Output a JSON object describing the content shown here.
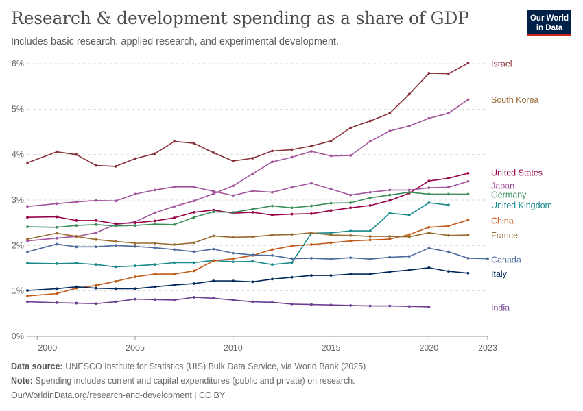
{
  "header": {
    "title": "Research & development spending as a share of GDP",
    "subtitle": "Includes basic research, applied research, and experimental development."
  },
  "logo": {
    "line1": "Our World",
    "line2": "in Data"
  },
  "footer": {
    "source_label": "Data source:",
    "source_text": " UNESCO Institute for Statistics (UIS) Bulk Data Service, via World Bank (2025)",
    "note_label": "Note:",
    "note_text": " Spending includes current and capital expenditures (public and private) on research.",
    "credit": "OurWorldinData.org/research-and-development | CC BY"
  },
  "chart_data": {
    "type": "line",
    "title": "Research & development spending as a share of GDP",
    "xlim": [
      1999.5,
      2023
    ],
    "ylim": [
      0,
      6
    ],
    "x_ticks": [
      2000,
      2005,
      2010,
      2015,
      2020,
      2023
    ],
    "y_ticks": [
      {
        "value": 0,
        "label": "0%"
      },
      {
        "value": 1,
        "label": "1%"
      },
      {
        "value": 2,
        "label": "2%"
      },
      {
        "value": 3,
        "label": "3%"
      },
      {
        "value": 4,
        "label": "4%"
      },
      {
        "value": 5,
        "label": "5%"
      },
      {
        "value": 6,
        "label": "6%"
      }
    ],
    "grid": "horizontal-dashed",
    "series": [
      {
        "name": "Israel",
        "color": "#883039",
        "label_y": 6.0,
        "x": [
          1999.5,
          2001,
          2002,
          2003,
          2004,
          2005,
          2006,
          2007,
          2008,
          2009,
          2010,
          2011,
          2012,
          2013,
          2014,
          2015,
          2016,
          2017,
          2018,
          2019,
          2020,
          2021,
          2022
        ],
        "y": [
          3.82,
          4.06,
          4.0,
          3.76,
          3.74,
          3.91,
          4.02,
          4.29,
          4.25,
          4.04,
          3.86,
          3.92,
          4.08,
          4.11,
          4.19,
          4.3,
          4.59,
          4.74,
          4.91,
          5.33,
          5.79,
          5.78,
          6.01
        ]
      },
      {
        "name": "South Korea",
        "color": "#a2559c",
        "label_y": 5.21,
        "label_color": "#996633",
        "x": [
          1999.5,
          2001,
          2002,
          2003,
          2004,
          2005,
          2006,
          2007,
          2008,
          2009,
          2010,
          2011,
          2012,
          2013,
          2014,
          2015,
          2016,
          2017,
          2018,
          2019,
          2020,
          2021,
          2022
        ],
        "y": [
          2.1,
          2.16,
          2.2,
          2.28,
          2.46,
          2.52,
          2.72,
          2.86,
          2.98,
          3.14,
          3.31,
          3.58,
          3.84,
          3.94,
          4.07,
          3.97,
          3.98,
          4.29,
          4.52,
          4.63,
          4.8,
          4.91,
          5.21
        ]
      },
      {
        "name": "United States",
        "color": "#970046",
        "label_y": 3.6,
        "x": [
          1999.5,
          2001,
          2002,
          2003,
          2004,
          2005,
          2006,
          2007,
          2008,
          2009,
          2010,
          2011,
          2012,
          2013,
          2014,
          2015,
          2016,
          2017,
          2018,
          2019,
          2020,
          2021,
          2022
        ],
        "y": [
          2.62,
          2.63,
          2.55,
          2.55,
          2.48,
          2.5,
          2.54,
          2.61,
          2.73,
          2.78,
          2.71,
          2.73,
          2.67,
          2.69,
          2.7,
          2.77,
          2.83,
          2.88,
          2.99,
          3.15,
          3.42,
          3.48,
          3.59
        ]
      },
      {
        "name": "Japan",
        "color": "#a2559c",
        "label_y": 3.32,
        "x": [
          1999.5,
          2001,
          2002,
          2003,
          2004,
          2005,
          2006,
          2007,
          2008,
          2009,
          2010,
          2011,
          2012,
          2013,
          2014,
          2015,
          2016,
          2017,
          2018,
          2019,
          2020,
          2021,
          2022
        ],
        "y": [
          2.86,
          2.92,
          2.96,
          2.99,
          2.98,
          3.13,
          3.22,
          3.29,
          3.29,
          3.19,
          3.1,
          3.2,
          3.17,
          3.28,
          3.37,
          3.24,
          3.11,
          3.17,
          3.22,
          3.22,
          3.27,
          3.28,
          3.41
        ]
      },
      {
        "name": "Germany",
        "color": "#3c8d5a",
        "label_y": 3.12,
        "x": [
          1999.5,
          2001,
          2002,
          2003,
          2004,
          2005,
          2006,
          2007,
          2008,
          2009,
          2010,
          2011,
          2012,
          2013,
          2014,
          2015,
          2016,
          2017,
          2018,
          2019,
          2020,
          2021,
          2022
        ],
        "y": [
          2.41,
          2.4,
          2.44,
          2.46,
          2.43,
          2.44,
          2.47,
          2.46,
          2.62,
          2.74,
          2.73,
          2.8,
          2.87,
          2.83,
          2.87,
          2.93,
          2.94,
          3.05,
          3.11,
          3.17,
          3.13,
          3.13,
          3.13
        ]
      },
      {
        "name": "United Kingdom",
        "color": "#18898a",
        "label_y": 2.89,
        "x": [
          1999.5,
          2001,
          2002,
          2003,
          2004,
          2005,
          2006,
          2007,
          2008,
          2009,
          2010,
          2011,
          2012,
          2013,
          2014,
          2015,
          2016,
          2017,
          2018,
          2019,
          2020,
          2021
        ],
        "y": [
          1.61,
          1.6,
          1.61,
          1.58,
          1.53,
          1.55,
          1.58,
          1.62,
          1.62,
          1.67,
          1.64,
          1.65,
          1.58,
          1.62,
          2.27,
          2.28,
          2.32,
          2.32,
          2.71,
          2.67,
          2.94,
          2.89
        ]
      },
      {
        "name": "China",
        "color": "#c05917",
        "label_y": 2.55,
        "x": [
          1999.5,
          2001,
          2002,
          2003,
          2004,
          2005,
          2006,
          2007,
          2008,
          2009,
          2010,
          2011,
          2012,
          2013,
          2014,
          2015,
          2016,
          2017,
          2018,
          2019,
          2020,
          2021,
          2022
        ],
        "y": [
          0.89,
          0.94,
          1.06,
          1.12,
          1.21,
          1.31,
          1.37,
          1.37,
          1.44,
          1.66,
          1.71,
          1.78,
          1.91,
          1.99,
          2.02,
          2.06,
          2.1,
          2.12,
          2.14,
          2.24,
          2.4,
          2.43,
          2.56
        ]
      },
      {
        "name": "France",
        "color": "#9a6a2e",
        "label_y": 2.22,
        "x": [
          1999.5,
          2001,
          2002,
          2003,
          2004,
          2005,
          2006,
          2007,
          2008,
          2009,
          2010,
          2011,
          2012,
          2013,
          2014,
          2015,
          2016,
          2017,
          2018,
          2019,
          2020,
          2021,
          2022
        ],
        "y": [
          2.14,
          2.27,
          2.2,
          2.13,
          2.09,
          2.05,
          2.05,
          2.02,
          2.06,
          2.21,
          2.18,
          2.19,
          2.23,
          2.24,
          2.28,
          2.23,
          2.22,
          2.2,
          2.2,
          2.19,
          2.28,
          2.22,
          2.23
        ]
      },
      {
        "name": "Canada",
        "color": "#4c6a9c",
        "label_y": 1.69,
        "x": [
          1999.5,
          2001,
          2002,
          2003,
          2004,
          2005,
          2006,
          2007,
          2008,
          2009,
          2010,
          2011,
          2012,
          2013,
          2014,
          2015,
          2016,
          2017,
          2018,
          2019,
          2020,
          2021,
          2022,
          2023
        ],
        "y": [
          1.86,
          2.03,
          1.97,
          1.97,
          2.0,
          1.98,
          1.95,
          1.91,
          1.86,
          1.92,
          1.83,
          1.79,
          1.78,
          1.71,
          1.72,
          1.7,
          1.73,
          1.7,
          1.74,
          1.76,
          1.94,
          1.86,
          1.72,
          1.71
        ]
      },
      {
        "name": "Italy",
        "color": "#00295b",
        "label_y": 1.38,
        "x": [
          1999.5,
          2001,
          2002,
          2003,
          2004,
          2005,
          2006,
          2007,
          2008,
          2009,
          2010,
          2011,
          2012,
          2013,
          2014,
          2015,
          2016,
          2017,
          2018,
          2019,
          2020,
          2021,
          2022
        ],
        "y": [
          1.01,
          1.05,
          1.09,
          1.06,
          1.05,
          1.05,
          1.09,
          1.13,
          1.16,
          1.22,
          1.22,
          1.2,
          1.26,
          1.3,
          1.34,
          1.34,
          1.37,
          1.37,
          1.42,
          1.46,
          1.51,
          1.43,
          1.39
        ]
      },
      {
        "name": "India",
        "color": "#6d3e91",
        "label_y": 0.63,
        "x": [
          1999.5,
          2001,
          2002,
          2003,
          2004,
          2005,
          2006,
          2007,
          2008,
          2009,
          2010,
          2011,
          2012,
          2013,
          2014,
          2015,
          2016,
          2017,
          2018,
          2019,
          2020
        ],
        "y": [
          0.76,
          0.74,
          0.73,
          0.72,
          0.76,
          0.82,
          0.81,
          0.8,
          0.86,
          0.84,
          0.8,
          0.76,
          0.75,
          0.71,
          0.7,
          0.69,
          0.68,
          0.67,
          0.67,
          0.66,
          0.65
        ]
      }
    ]
  }
}
